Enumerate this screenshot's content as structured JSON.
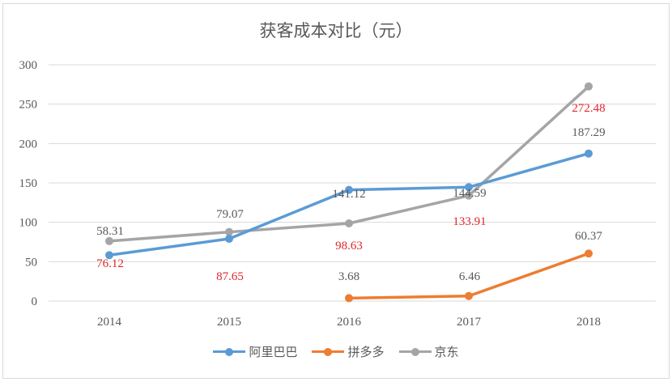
{
  "chart_data": {
    "type": "line",
    "title": "获客成本对比（元）",
    "xlabel": "",
    "ylabel": "",
    "categories": [
      "2014",
      "2015",
      "2016",
      "2017",
      "2018"
    ],
    "ylim": [
      0,
      300
    ],
    "yticks": [
      "0",
      "50",
      "100",
      "150",
      "200",
      "250",
      "300"
    ],
    "grid": true,
    "legend_position": "bottom",
    "series": [
      {
        "name": "阿里巴巴",
        "color": "#5b9bd5",
        "values": [
          58.31,
          79.07,
          141.12,
          144.59,
          187.29
        ]
      },
      {
        "name": "拼多多",
        "color": "#ed7d31",
        "values": [
          null,
          null,
          3.68,
          6.46,
          60.37
        ]
      },
      {
        "name": "京东",
        "color": "#a5a5a5",
        "values": [
          76.12,
          87.65,
          98.63,
          133.91,
          272.48
        ]
      }
    ],
    "data_labels": [
      {
        "text": "58.31",
        "color": "#595959",
        "x": 2014,
        "pos": "above"
      },
      {
        "text": "76.12",
        "color": "#e0262b",
        "x": 2014,
        "pos": "below"
      },
      {
        "text": "79.07",
        "color": "#595959",
        "x": 2015,
        "pos": "above"
      },
      {
        "text": "87.65",
        "color": "#e0262b",
        "x": 2015,
        "pos": "below"
      },
      {
        "text": "141.12",
        "color": "#595959",
        "x": 2016,
        "pos": "above"
      },
      {
        "text": "98.63",
        "color": "#e0262b",
        "x": 2016,
        "pos": "below"
      },
      {
        "text": "3.68",
        "color": "#595959",
        "x": 2016,
        "pos": "above"
      },
      {
        "text": "144.59",
        "color": "#595959",
        "x": 2017,
        "pos": "above"
      },
      {
        "text": "133.91",
        "color": "#e0262b",
        "x": 2017,
        "pos": "below"
      },
      {
        "text": "6.46",
        "color": "#595959",
        "x": 2017,
        "pos": "above"
      },
      {
        "text": "272.48",
        "color": "#e0262b",
        "x": 2018,
        "pos": "below"
      },
      {
        "text": "187.29",
        "color": "#595959",
        "x": 2018,
        "pos": "above"
      },
      {
        "text": "60.37",
        "color": "#595959",
        "x": 2018,
        "pos": "above"
      }
    ]
  },
  "legend": [
    {
      "label": "阿里巴巴",
      "color": "#5b9bd5"
    },
    {
      "label": "拼多多",
      "color": "#ed7d31"
    },
    {
      "label": "京东",
      "color": "#a5a5a5"
    }
  ]
}
